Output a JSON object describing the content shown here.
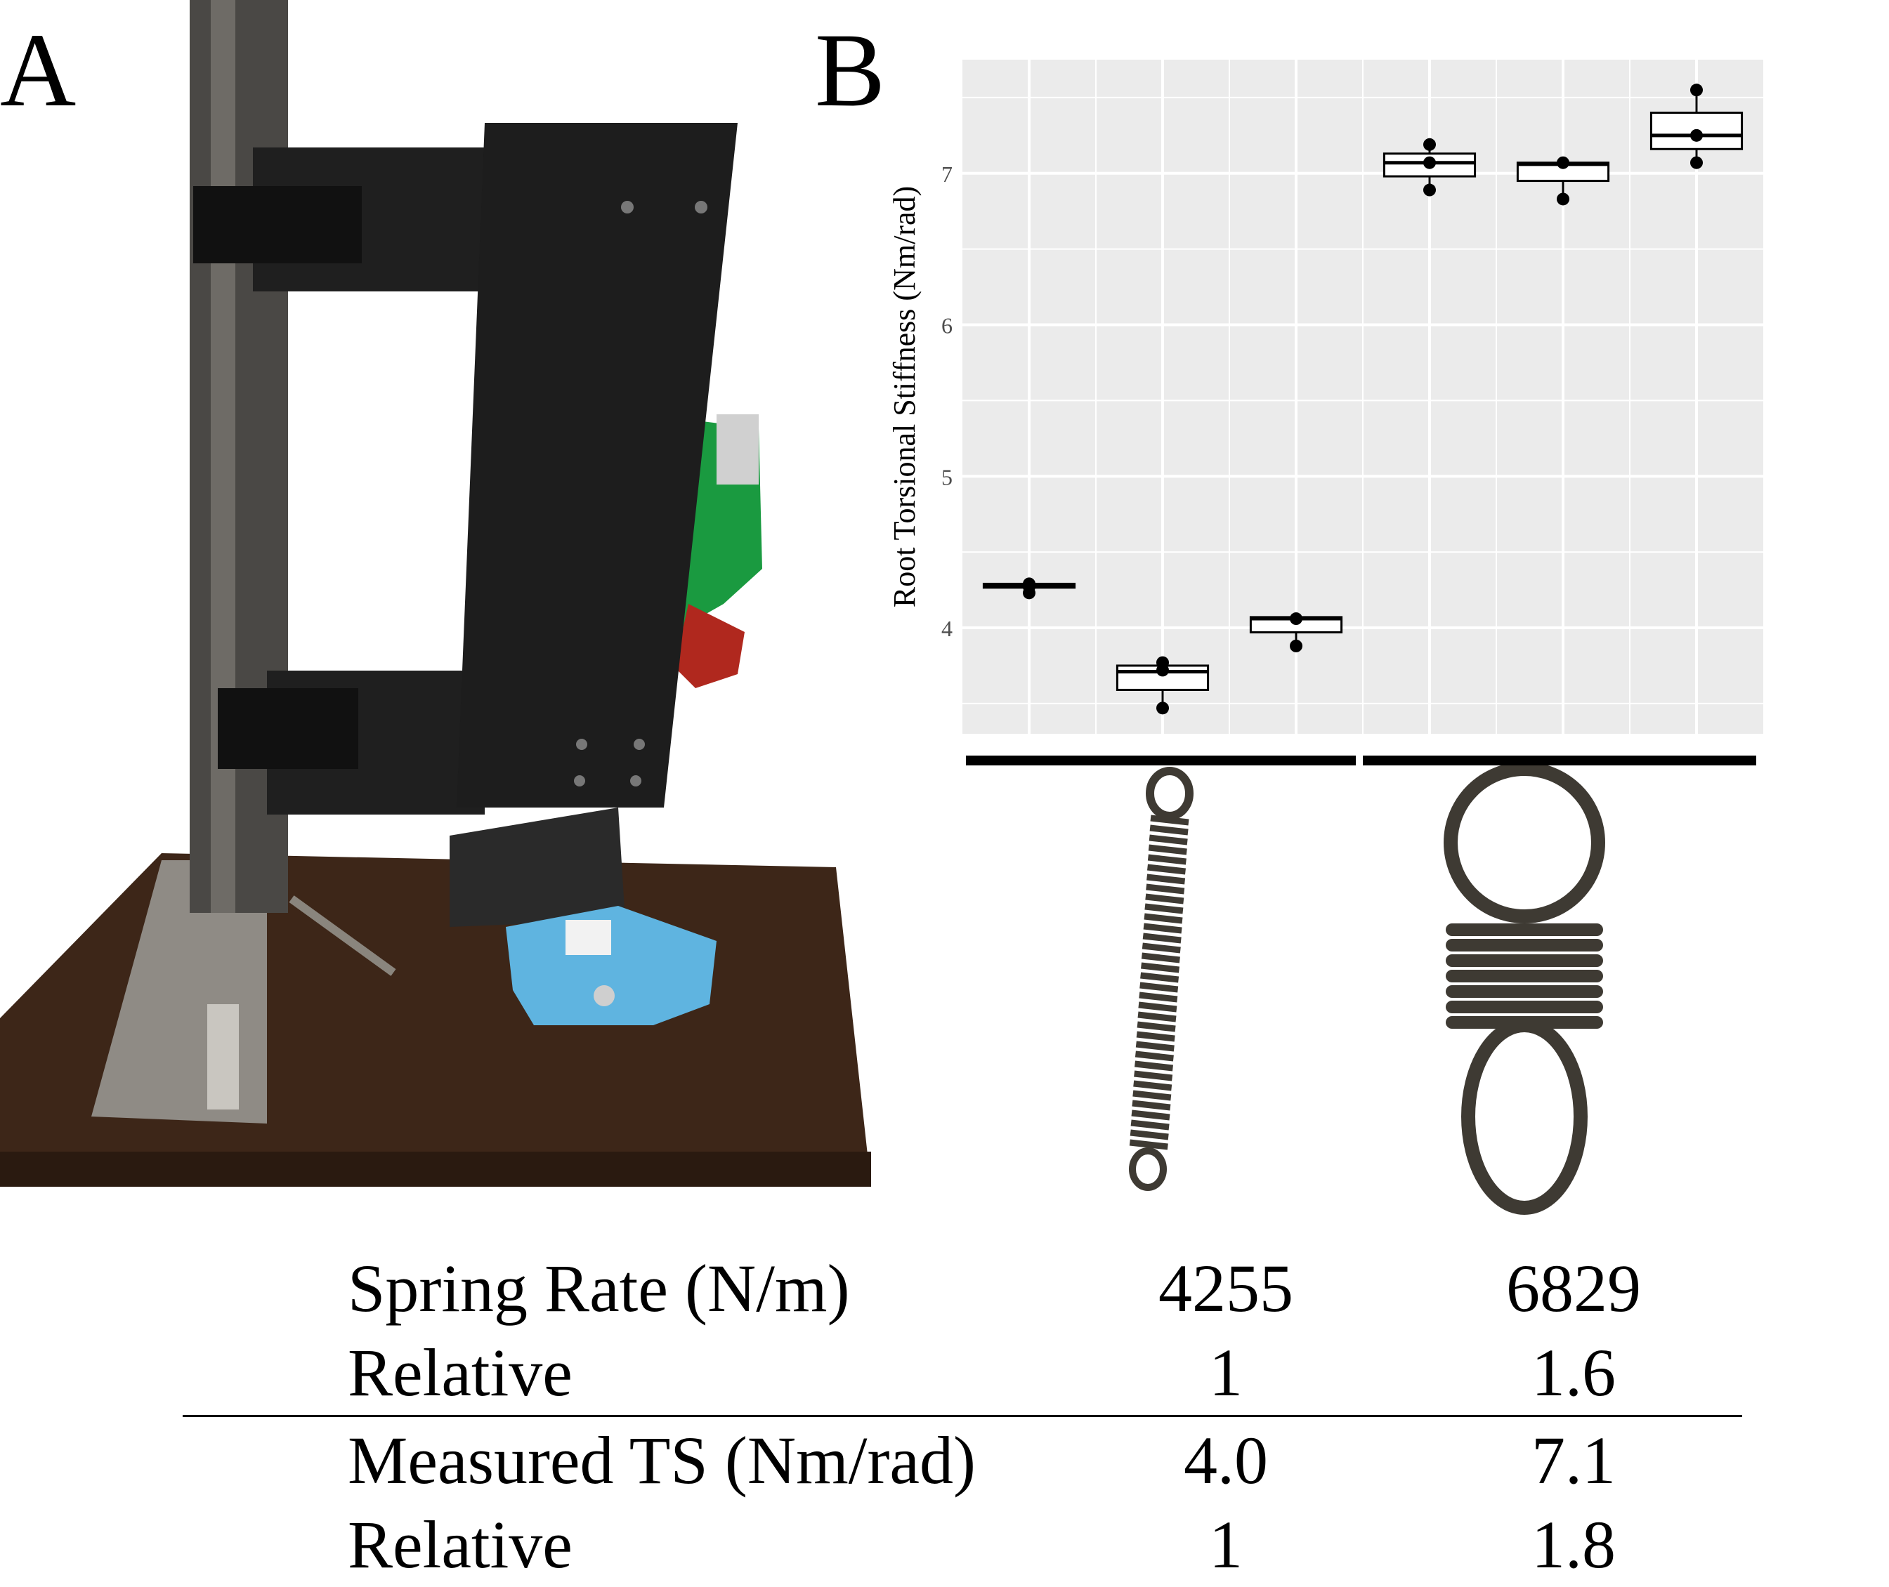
{
  "panels": {
    "a_label": "A",
    "b_label": "B"
  },
  "chart_data": {
    "type": "box",
    "ylabel": "Root Torsional Stiffness (Nm/rad)",
    "ylim": [
      3.3,
      7.75
    ],
    "yticks": [
      4,
      5,
      6,
      7
    ],
    "grid": true,
    "group_bars": [
      {
        "spring_rate": "4255",
        "boxes": [
          0,
          1,
          2
        ]
      },
      {
        "spring_rate": "6829",
        "boxes": [
          3,
          4,
          5
        ]
      }
    ],
    "boxes": [
      {
        "q1": 4.265,
        "median": 4.28,
        "q3": 4.29,
        "lower": 4.24,
        "upper": 4.29,
        "points": [
          4.29,
          4.27,
          4.23
        ]
      },
      {
        "q1": 3.59,
        "median": 3.71,
        "q3": 3.75,
        "lower": 3.47,
        "upper": 3.78,
        "points": [
          3.47,
          3.72,
          3.77
        ]
      },
      {
        "q1": 3.97,
        "median": 4.06,
        "q3": 4.07,
        "lower": 3.88,
        "upper": 4.07,
        "points": [
          3.88,
          4.06
        ]
      },
      {
        "q1": 6.98,
        "median": 7.07,
        "q3": 7.13,
        "lower": 6.89,
        "upper": 7.19,
        "points": [
          6.89,
          7.07,
          7.19
        ]
      },
      {
        "q1": 6.95,
        "median": 7.06,
        "q3": 7.07,
        "lower": 6.83,
        "upper": 7.07,
        "points": [
          6.83,
          7.07
        ]
      },
      {
        "q1": 7.16,
        "median": 7.25,
        "q3": 7.4,
        "lower": 7.07,
        "upper": 7.55,
        "points": [
          7.07,
          7.25,
          7.55
        ]
      }
    ]
  },
  "table": {
    "rows": [
      {
        "label": "Spring Rate (N/m)",
        "v1": "4255",
        "v2": "6829"
      },
      {
        "label": "Relative",
        "v1": "1",
        "v2": "1.6"
      },
      {
        "label": "Measured TS (Nm/rad)",
        "v1": "4.0",
        "v2": "7.1"
      },
      {
        "label": "Relative",
        "v1": "1",
        "v2": "1.8"
      }
    ]
  },
  "colors": {
    "plot_bg": "#ebebeb",
    "grid": "#ffffff",
    "tick_text": "#4d4d4d",
    "box_fill": "#ffffff",
    "ink": "#000000",
    "photo_bg": "#ffffff",
    "frame_black": "#1b1b1b",
    "base_rust": "#3d2618",
    "blue_part": "#5fb4e0",
    "green_part": "#1a9a40",
    "spring_steel": "#3e3a33"
  }
}
